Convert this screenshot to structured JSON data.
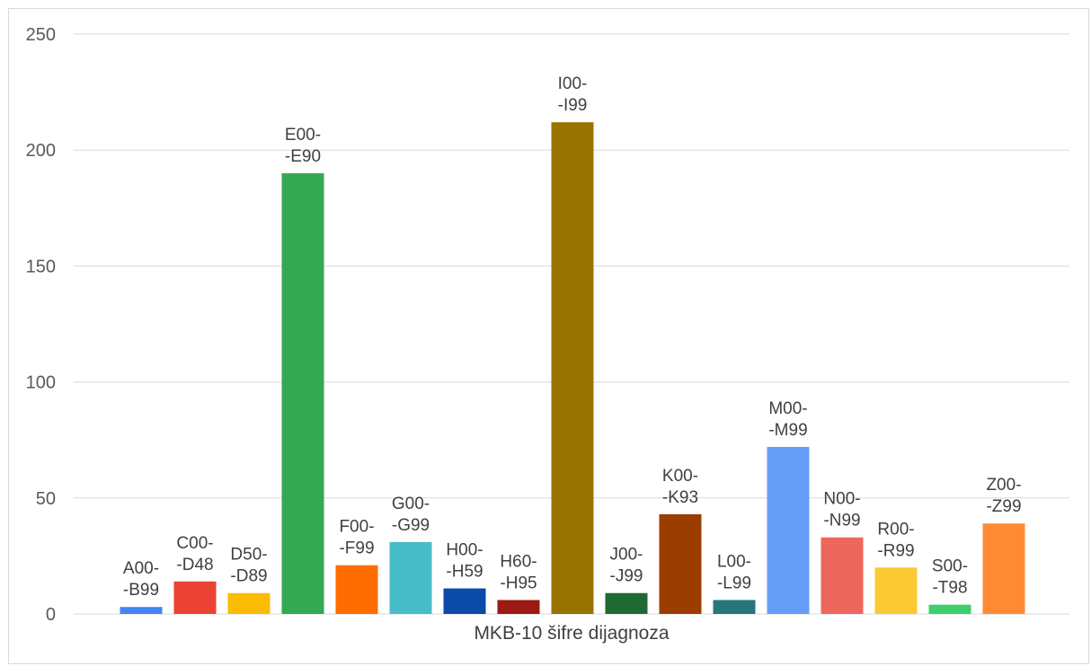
{
  "chart_data": {
    "type": "bar",
    "xlabel": "MKB-10 šifre dijagnoza",
    "ylabel": "",
    "title": "",
    "ylim": [
      0,
      250
    ],
    "yticks": [
      0,
      50,
      100,
      150,
      200,
      250
    ],
    "grid": true,
    "legend": "none",
    "categories": [
      [
        "A00-",
        "-B99"
      ],
      [
        "C00-",
        "-D48"
      ],
      [
        "D50-",
        "-D89"
      ],
      [
        "E00-",
        "-E90"
      ],
      [
        "F00-",
        "-F99"
      ],
      [
        "G00-",
        "-G99"
      ],
      [
        "H00-",
        "-H59"
      ],
      [
        "H60-",
        "-H95"
      ],
      [
        "I00-",
        "-I99"
      ],
      [
        "J00-",
        "-J99"
      ],
      [
        "K00-",
        "-K93"
      ],
      [
        "L00-",
        "-L99"
      ],
      [
        "M00-",
        "-M99"
      ],
      [
        "N00-",
        "-N99"
      ],
      [
        "R00-",
        "-R99"
      ],
      [
        "S00-",
        "-T98"
      ],
      [
        "Z00-",
        "-Z99"
      ]
    ],
    "values": [
      3,
      14,
      9,
      190,
      21,
      31,
      11,
      6,
      212,
      9,
      43,
      6,
      72,
      33,
      20,
      4,
      39
    ],
    "colors": [
      "#4285f4",
      "#ea4335",
      "#fbbc04",
      "#34a853",
      "#ff6d01",
      "#46bdc6",
      "#0b4aa8",
      "#9b1a12",
      "#977400",
      "#1f6a33",
      "#9c3d00",
      "#26767c",
      "#669df6",
      "#ee675c",
      "#fcc934",
      "#3ecf6c",
      "#ff8a33"
    ]
  }
}
